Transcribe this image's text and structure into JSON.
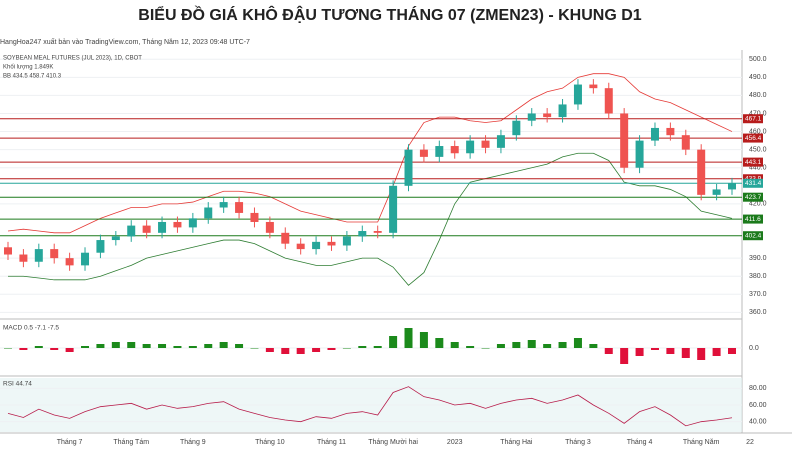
{
  "header": {
    "title": "BIỂU ĐỒ GIÁ KHÔ ĐẬU TƯƠNG THÁNG 07 (ZMEN23) - KHUNG D1",
    "publisher": "HangHoa247 xuất bản vào TradingView.com, Tháng Năm 12, 2023 09:48 UTC-7"
  },
  "chart_data": [
    {
      "type": "candlestick",
      "legend": [
        "SOYBEAN MEAL FUTURES (JUL 2023), 1D, CBOT",
        "Khối lượng  1.849K",
        "BB  434.5  458.7  410.3"
      ],
      "categories": [
        null,
        null,
        null,
        null,
        "Tháng 7",
        null,
        null,
        null,
        "Tháng Tám",
        null,
        null,
        null,
        "Tháng 9",
        null,
        null,
        null,
        null,
        "Tháng 10",
        null,
        null,
        null,
        "Tháng 11",
        null,
        null,
        null,
        "Tháng Mười hai",
        null,
        null,
        null,
        "2023",
        null,
        null,
        null,
        "Tháng Hai",
        null,
        null,
        null,
        "Tháng 3",
        null,
        null,
        null,
        "Tháng 4",
        null,
        null,
        null,
        "Tháng Năm",
        null,
        null
      ],
      "x_end_label": "22",
      "opens": [
        396,
        392,
        388,
        395,
        390,
        386,
        393,
        400,
        402,
        408,
        404,
        410,
        407,
        412,
        418,
        421,
        415,
        410,
        404,
        398,
        395,
        399,
        397,
        402,
        405,
        404,
        430,
        450,
        446,
        452,
        448,
        455,
        451,
        458,
        466,
        470,
        468,
        475,
        486,
        484,
        470,
        440,
        455,
        462,
        458,
        450,
        425,
        428
      ],
      "highs": [
        399,
        395,
        398,
        398,
        393,
        396,
        403,
        405,
        411,
        411,
        413,
        413,
        415,
        421,
        424,
        424,
        418,
        413,
        407,
        401,
        402,
        402,
        405,
        408,
        408,
        433,
        453,
        453,
        455,
        455,
        458,
        458,
        461,
        469,
        473,
        473,
        478,
        489,
        489,
        487,
        473,
        458,
        465,
        465,
        461,
        453,
        431,
        434.4
      ],
      "lows": [
        389,
        385,
        385,
        387,
        383,
        383,
        390,
        397,
        399,
        401,
        401,
        404,
        404,
        409,
        415,
        412,
        407,
        401,
        395,
        392,
        392,
        394,
        394,
        399,
        401,
        401,
        427,
        443,
        443,
        445,
        445,
        448,
        448,
        455,
        463,
        465,
        465,
        472,
        481,
        467,
        437,
        437,
        452,
        455,
        447,
        422,
        422,
        425
      ],
      "closes": [
        392,
        388,
        395,
        390,
        386,
        393,
        400,
        402,
        408,
        404,
        410,
        407,
        412,
        418,
        421,
        415,
        410,
        404,
        398,
        395,
        399,
        397,
        402,
        405,
        404,
        430,
        450,
        446,
        452,
        448,
        455,
        451,
        458,
        466,
        470,
        468,
        475,
        486,
        484,
        470,
        440,
        455,
        462,
        458,
        450,
        425,
        428,
        431.4
      ],
      "bb_upper": [
        405,
        406,
        405,
        404,
        404,
        408,
        412,
        415,
        418,
        418,
        420,
        420,
        421,
        424,
        427,
        427,
        426,
        424,
        420,
        416,
        414,
        412,
        410,
        410,
        410,
        430,
        452,
        465,
        468,
        468,
        466,
        465,
        466,
        472,
        478,
        482,
        484,
        490,
        492,
        492,
        490,
        482,
        478,
        476,
        472,
        468,
        464,
        460
      ],
      "bb_lower": [
        380,
        380,
        379,
        378,
        378,
        378,
        380,
        383,
        386,
        390,
        392,
        394,
        396,
        398,
        400,
        400,
        398,
        394,
        390,
        388,
        386,
        386,
        388,
        390,
        390,
        385,
        375,
        382,
        400,
        420,
        432,
        434,
        436,
        438,
        440,
        442,
        446,
        448,
        448,
        444,
        432,
        430,
        430,
        428,
        424,
        416,
        414,
        412
      ],
      "up_color": "#26a69a",
      "down_color": "#ef5350",
      "band_color": "#2e7d32",
      "band_upper_color": "#e53935",
      "ylim": [
        358,
        504
      ],
      "yticks": [
        {
          "value": 500,
          "label": "500.0"
        },
        {
          "value": 490,
          "label": "490.0"
        },
        {
          "value": 480,
          "label": "480.0"
        },
        {
          "value": 470,
          "label": "470.0"
        },
        {
          "value": 460,
          "label": "460.0"
        },
        {
          "value": 450,
          "label": "450.0"
        },
        {
          "value": 440,
          "label": "440.0"
        },
        {
          "value": 420,
          "label": "420.0"
        },
        {
          "value": 390,
          "label": "390.0"
        },
        {
          "value": 380,
          "label": "380.0"
        },
        {
          "value": 370,
          "label": "370.0"
        },
        {
          "value": 360,
          "label": "360.0"
        }
      ],
      "levels": [
        {
          "value": 467.1,
          "color": "#b71c1c"
        },
        {
          "value": 456.4,
          "color": "#b71c1c"
        },
        {
          "value": 443.1,
          "color": "#b71c1c"
        },
        {
          "value": 433.9,
          "color": "#b71c1c"
        },
        {
          "value": 431.4,
          "color": "#26a69a"
        },
        {
          "value": 423.7,
          "color": "#1b7a1b"
        },
        {
          "value": 411.6,
          "color": "#1b7a1b"
        },
        {
          "value": 402.4,
          "color": "#1b7a1b"
        }
      ]
    },
    {
      "type": "bar",
      "legend": "MACD  0.5  -7.1  -7.5",
      "values": [
        0,
        -1,
        1,
        -1,
        -2,
        1,
        2,
        3,
        3,
        2,
        2,
        1,
        1,
        2,
        3,
        2,
        0,
        -2,
        -3,
        -3,
        -2,
        -1,
        0,
        1,
        1,
        6,
        10,
        8,
        5,
        3,
        1,
        0,
        2,
        3,
        4,
        2,
        3,
        5,
        2,
        -3,
        -8,
        -4,
        -1,
        -3,
        -5,
        -6,
        -4,
        -3
      ],
      "up_color": "#1b8a1b",
      "down_color": "#e0103a",
      "ylim": [
        -12,
        12
      ],
      "yticks": [
        {
          "value": 0,
          "label": "0.0"
        }
      ]
    },
    {
      "type": "line",
      "legend": "RSI  44.74",
      "values": [
        50,
        45,
        55,
        48,
        44,
        52,
        58,
        60,
        62,
        55,
        60,
        56,
        58,
        62,
        64,
        55,
        50,
        45,
        42,
        40,
        46,
        44,
        50,
        52,
        48,
        75,
        82,
        70,
        66,
        60,
        62,
        56,
        62,
        66,
        68,
        62,
        66,
        72,
        60,
        50,
        38,
        52,
        58,
        48,
        35,
        40,
        42,
        44.74
      ],
      "color": "#b71c4a",
      "ylim": [
        30,
        90
      ],
      "yticks": [
        {
          "value": 80,
          "label": "80.00"
        },
        {
          "value": 60,
          "label": "60.00"
        },
        {
          "value": 40,
          "label": "40.00"
        }
      ]
    }
  ]
}
